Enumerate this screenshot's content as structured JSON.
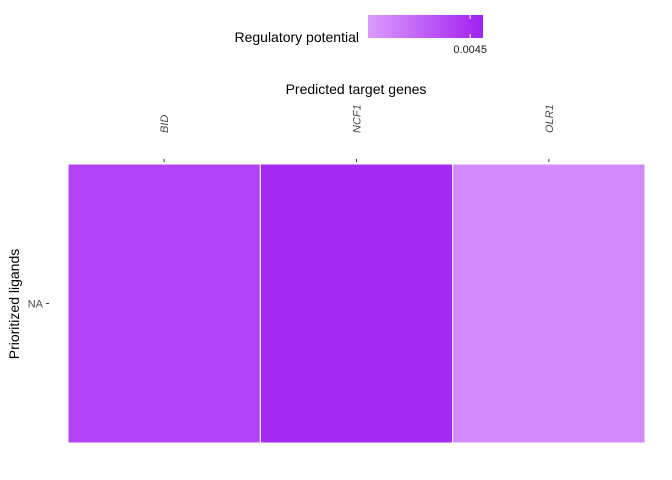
{
  "chart_data": {
    "type": "heatmap",
    "xlabel": "Predicted target genes",
    "ylabel": "Prioritized ligands",
    "x_categories": [
      "BID",
      "NCF1",
      "OLR1"
    ],
    "y_categories": [
      "NA"
    ],
    "values": [
      [
        0.004,
        0.0046,
        0.0025
      ]
    ],
    "legend": {
      "title": "Regulatory potential",
      "placement": "top",
      "range": [
        0.0021,
        0.0048
      ],
      "ticks": [
        0.0045
      ],
      "tick_labels": [
        "0.0045"
      ],
      "color_low": "#dc9bfc",
      "color_high": "#a020f0"
    },
    "grid": false
  }
}
